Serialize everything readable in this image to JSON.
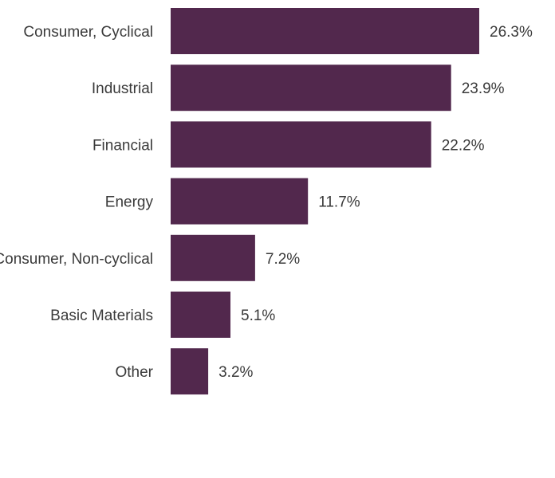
{
  "chart_data": {
    "type": "bar",
    "orientation": "horizontal",
    "categories": [
      "Consumer, Cyclical",
      "Industrial",
      "Financial",
      "Energy",
      "Consumer, Non-cyclical",
      "Basic Materials",
      "Other"
    ],
    "values": [
      26.3,
      23.9,
      22.2,
      11.7,
      7.2,
      5.1,
      3.2
    ],
    "value_labels": [
      "26.3%",
      "23.9%",
      "22.2%",
      "11.7%",
      "7.2%",
      "5.1%",
      "3.2%"
    ],
    "unit": "%",
    "title": "",
    "xlabel": "",
    "ylabel": "",
    "xlim": [
      0,
      26.3
    ],
    "grid": false,
    "legend": "none",
    "bar_color": "#52284d",
    "text_color": "#3a3a3a"
  }
}
